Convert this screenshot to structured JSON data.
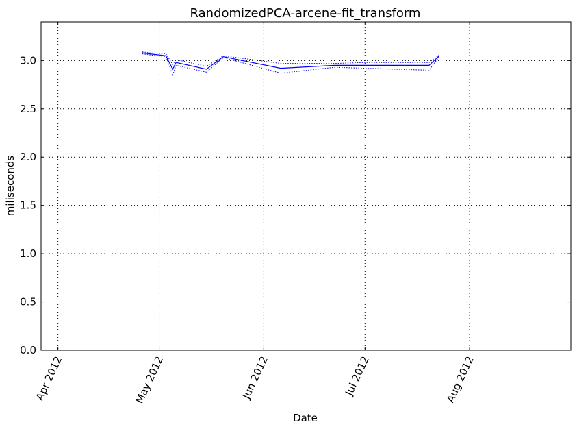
{
  "chart_data": {
    "type": "line",
    "title": "RandomizedPCA-arcene-fit_transform",
    "xlabel": "Date",
    "ylabel": "miliseconds",
    "xlim": [
      "2012-03-27",
      "2012-08-31"
    ],
    "ylim": [
      0,
      3.4
    ],
    "x_ticks": [
      {
        "date": "2012-04-01",
        "label": "Apr 2012"
      },
      {
        "date": "2012-05-01",
        "label": "May 2012"
      },
      {
        "date": "2012-06-01",
        "label": "Jun 2012"
      },
      {
        "date": "2012-07-01",
        "label": "Jul 2012"
      },
      {
        "date": "2012-08-01",
        "label": "Aug 2012"
      }
    ],
    "y_ticks": [
      {
        "value": 0.0,
        "label": "0.0"
      },
      {
        "value": 0.5,
        "label": "0.5"
      },
      {
        "value": 1.0,
        "label": "1.0"
      },
      {
        "value": 1.5,
        "label": "1.5"
      },
      {
        "value": 2.0,
        "label": "2.0"
      },
      {
        "value": 2.5,
        "label": "2.5"
      },
      {
        "value": 3.0,
        "label": "3.0"
      }
    ],
    "grid": true,
    "colors": {
      "line": "#0000ff",
      "axis": "#000000",
      "grid": "#000000"
    },
    "series": [
      {
        "role": "mean",
        "style": "solid",
        "x": [
          "2012-04-26",
          "2012-04-28",
          "2012-05-03",
          "2012-05-05",
          "2012-05-06",
          "2012-05-15",
          "2012-05-20",
          "2012-06-06",
          "2012-06-22",
          "2012-07-01",
          "2012-07-20",
          "2012-07-23"
        ],
        "y": [
          3.08,
          3.07,
          3.05,
          2.91,
          2.98,
          2.91,
          3.04,
          2.92,
          2.95,
          2.95,
          2.95,
          3.05
        ]
      },
      {
        "role": "upper",
        "style": "dotted",
        "x": [
          "2012-04-26",
          "2012-04-28",
          "2012-05-03",
          "2012-05-05",
          "2012-05-06",
          "2012-05-15",
          "2012-05-20",
          "2012-06-06",
          "2012-06-22",
          "2012-07-01",
          "2012-07-20",
          "2012-07-23"
        ],
        "y": [
          3.09,
          3.08,
          3.07,
          2.96,
          3.01,
          2.94,
          3.05,
          2.97,
          2.97,
          2.98,
          2.98,
          3.06
        ]
      },
      {
        "role": "lower",
        "style": "dotted",
        "x": [
          "2012-04-26",
          "2012-04-28",
          "2012-05-03",
          "2012-05-05",
          "2012-05-06",
          "2012-05-15",
          "2012-05-20",
          "2012-06-06",
          "2012-06-22",
          "2012-07-01",
          "2012-07-20",
          "2012-07-23"
        ],
        "y": [
          3.07,
          3.06,
          3.04,
          2.85,
          2.95,
          2.88,
          3.03,
          2.87,
          2.93,
          2.92,
          2.9,
          3.04
        ]
      }
    ]
  }
}
